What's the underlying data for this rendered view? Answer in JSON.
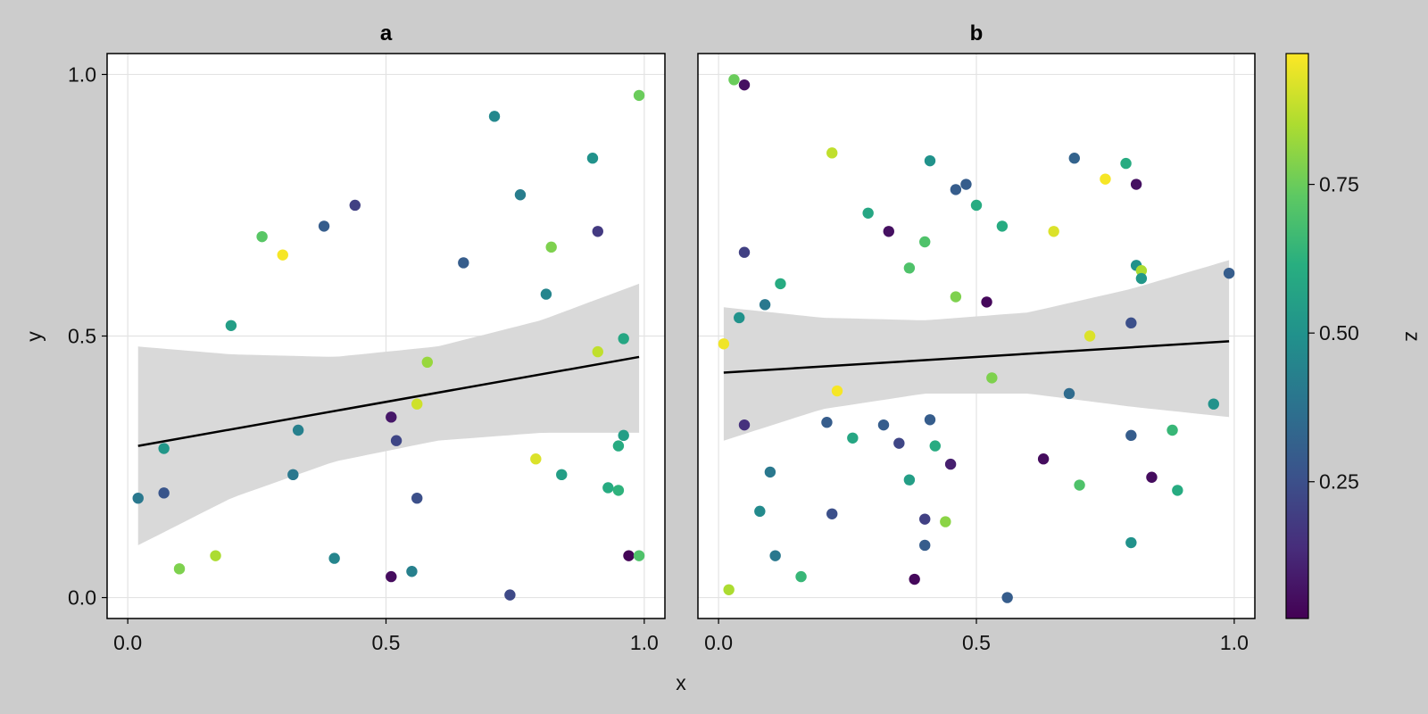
{
  "chart_data": {
    "type": "scatter",
    "xlabel": "x",
    "ylabel": "y",
    "xlim": [
      -0.04,
      1.04
    ],
    "ylim": [
      -0.04,
      1.04
    ],
    "x_ticks": [
      "0.0",
      "0.5",
      "1.0"
    ],
    "x_tick_values": [
      0.0,
      0.5,
      1.0
    ],
    "y_ticks": [
      "0.0",
      "0.5",
      "1.0"
    ],
    "y_tick_values": [
      0.0,
      0.5,
      1.0
    ],
    "grid": true,
    "colorbar": {
      "label": "z",
      "colormap": "viridis",
      "range": [
        0.02,
        0.97
      ],
      "ticks": [
        "0.25",
        "0.50",
        "0.75"
      ],
      "tick_values": [
        0.25,
        0.5,
        0.75
      ]
    },
    "colors": {
      "background": "#cccccc",
      "band": "#d9d9d9",
      "line": "#000000",
      "grid": "#e3e3e3"
    },
    "panels": [
      {
        "title": "a",
        "regression": {
          "x": [
            0.02,
            0.99
          ],
          "y": [
            0.29,
            0.46
          ]
        },
        "band": {
          "x": [
            0.02,
            0.2,
            0.4,
            0.6,
            0.8,
            0.99
          ],
          "upper": [
            0.48,
            0.465,
            0.46,
            0.48,
            0.53,
            0.6
          ],
          "lower": [
            0.1,
            0.19,
            0.26,
            0.3,
            0.315,
            0.315
          ]
        },
        "points": [
          [
            0.02,
            0.19,
            0.4
          ],
          [
            0.07,
            0.2,
            0.27
          ],
          [
            0.07,
            0.285,
            0.52
          ],
          [
            0.1,
            0.055,
            0.78
          ],
          [
            0.17,
            0.08,
            0.85
          ],
          [
            0.2,
            0.52,
            0.55
          ],
          [
            0.26,
            0.69,
            0.72
          ],
          [
            0.3,
            0.655,
            0.96
          ],
          [
            0.32,
            0.235,
            0.4
          ],
          [
            0.33,
            0.32,
            0.43
          ],
          [
            0.38,
            0.71,
            0.3
          ],
          [
            0.4,
            0.075,
            0.45
          ],
          [
            0.44,
            0.75,
            0.2
          ],
          [
            0.51,
            0.345,
            0.08
          ],
          [
            0.51,
            0.04,
            0.05
          ],
          [
            0.52,
            0.3,
            0.22
          ],
          [
            0.55,
            0.05,
            0.43
          ],
          [
            0.56,
            0.37,
            0.9
          ],
          [
            0.56,
            0.19,
            0.25
          ],
          [
            0.58,
            0.45,
            0.82
          ],
          [
            0.65,
            0.64,
            0.3
          ],
          [
            0.71,
            0.92,
            0.46
          ],
          [
            0.74,
            0.005,
            0.23
          ],
          [
            0.76,
            0.77,
            0.42
          ],
          [
            0.79,
            0.265,
            0.92
          ],
          [
            0.81,
            0.58,
            0.45
          ],
          [
            0.82,
            0.67,
            0.78
          ],
          [
            0.84,
            0.235,
            0.55
          ],
          [
            0.9,
            0.84,
            0.5
          ],
          [
            0.91,
            0.7,
            0.18
          ],
          [
            0.91,
            0.47,
            0.88
          ],
          [
            0.93,
            0.21,
            0.6
          ],
          [
            0.95,
            0.29,
            0.6
          ],
          [
            0.95,
            0.205,
            0.63
          ],
          [
            0.96,
            0.495,
            0.58
          ],
          [
            0.96,
            0.31,
            0.55
          ],
          [
            0.97,
            0.08,
            0.03
          ],
          [
            0.99,
            0.96,
            0.75
          ],
          [
            0.99,
            0.08,
            0.7
          ]
        ]
      },
      {
        "title": "b",
        "regression": {
          "x": [
            0.01,
            0.99
          ],
          "y": [
            0.43,
            0.49
          ]
        },
        "band": {
          "x": [
            0.01,
            0.2,
            0.4,
            0.6,
            0.8,
            0.99
          ],
          "upper": [
            0.555,
            0.535,
            0.53,
            0.545,
            0.59,
            0.645
          ],
          "lower": [
            0.3,
            0.36,
            0.39,
            0.39,
            0.365,
            0.345
          ]
        },
        "points": [
          [
            0.01,
            0.485,
            0.95
          ],
          [
            0.02,
            0.015,
            0.85
          ],
          [
            0.03,
            0.99,
            0.75
          ],
          [
            0.04,
            0.535,
            0.5
          ],
          [
            0.05,
            0.98,
            0.06
          ],
          [
            0.05,
            0.66,
            0.2
          ],
          [
            0.05,
            0.33,
            0.15
          ],
          [
            0.08,
            0.165,
            0.47
          ],
          [
            0.09,
            0.56,
            0.4
          ],
          [
            0.1,
            0.24,
            0.4
          ],
          [
            0.11,
            0.08,
            0.4
          ],
          [
            0.12,
            0.6,
            0.6
          ],
          [
            0.16,
            0.04,
            0.65
          ],
          [
            0.21,
            0.335,
            0.3
          ],
          [
            0.22,
            0.16,
            0.25
          ],
          [
            0.22,
            0.85,
            0.88
          ],
          [
            0.23,
            0.395,
            0.96
          ],
          [
            0.26,
            0.305,
            0.58
          ],
          [
            0.29,
            0.735,
            0.58
          ],
          [
            0.32,
            0.33,
            0.3
          ],
          [
            0.33,
            0.7,
            0.06
          ],
          [
            0.35,
            0.295,
            0.22
          ],
          [
            0.37,
            0.63,
            0.7
          ],
          [
            0.37,
            0.225,
            0.55
          ],
          [
            0.38,
            0.035,
            0.04
          ],
          [
            0.4,
            0.68,
            0.7
          ],
          [
            0.4,
            0.15,
            0.2
          ],
          [
            0.4,
            0.1,
            0.3
          ],
          [
            0.41,
            0.835,
            0.5
          ],
          [
            0.41,
            0.34,
            0.3
          ],
          [
            0.42,
            0.29,
            0.6
          ],
          [
            0.44,
            0.145,
            0.8
          ],
          [
            0.45,
            0.255,
            0.1
          ],
          [
            0.46,
            0.575,
            0.78
          ],
          [
            0.46,
            0.78,
            0.3
          ],
          [
            0.48,
            0.79,
            0.3
          ],
          [
            0.5,
            0.75,
            0.6
          ],
          [
            0.52,
            0.565,
            0.04
          ],
          [
            0.53,
            0.42,
            0.78
          ],
          [
            0.55,
            0.71,
            0.6
          ],
          [
            0.56,
            0.0,
            0.3
          ],
          [
            0.63,
            0.265,
            0.05
          ],
          [
            0.65,
            0.7,
            0.92
          ],
          [
            0.68,
            0.39,
            0.35
          ],
          [
            0.69,
            0.84,
            0.32
          ],
          [
            0.7,
            0.215,
            0.7
          ],
          [
            0.72,
            0.5,
            0.92
          ],
          [
            0.75,
            0.8,
            0.96
          ],
          [
            0.79,
            0.83,
            0.6
          ],
          [
            0.8,
            0.525,
            0.25
          ],
          [
            0.8,
            0.31,
            0.3
          ],
          [
            0.8,
            0.105,
            0.5
          ],
          [
            0.81,
            0.79,
            0.06
          ],
          [
            0.81,
            0.635,
            0.5
          ],
          [
            0.82,
            0.625,
            0.85
          ],
          [
            0.82,
            0.61,
            0.52
          ],
          [
            0.84,
            0.23,
            0.05
          ],
          [
            0.88,
            0.32,
            0.65
          ],
          [
            0.89,
            0.205,
            0.6
          ],
          [
            0.96,
            0.37,
            0.5
          ],
          [
            0.99,
            0.62,
            0.3
          ]
        ]
      }
    ]
  }
}
